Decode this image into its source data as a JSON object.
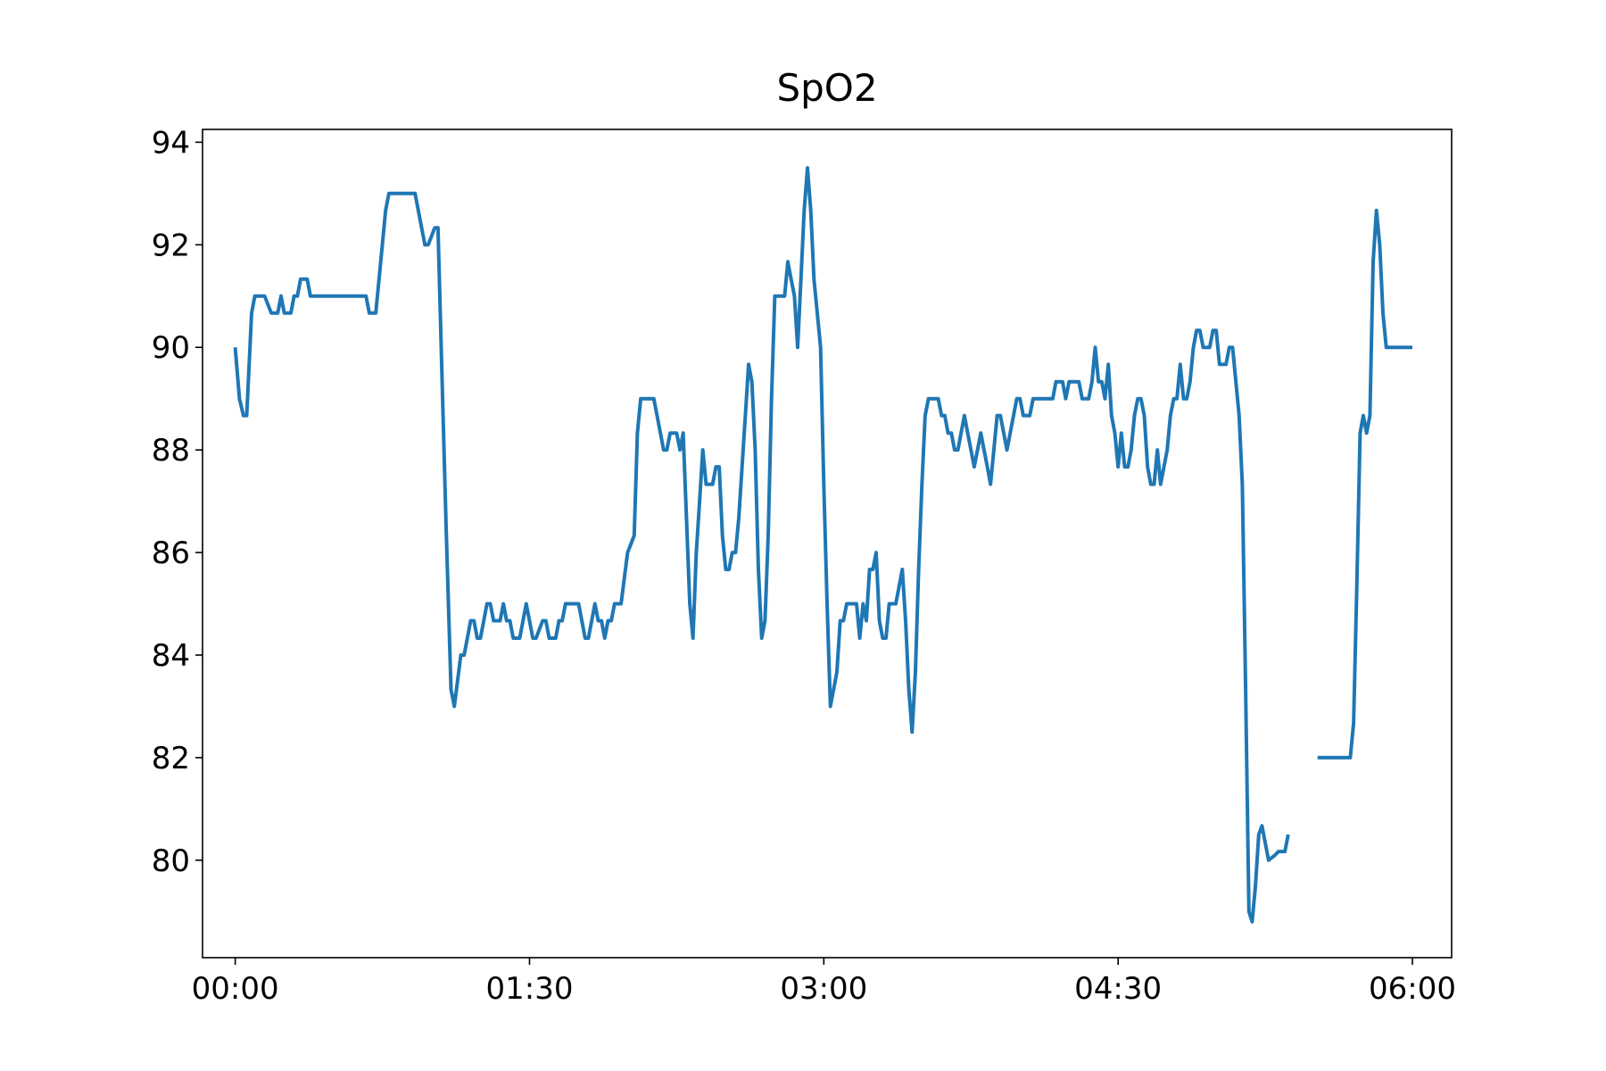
{
  "chart_data": {
    "type": "line",
    "title": "SpO2",
    "xlabel": "",
    "ylabel": "",
    "x_unit": "minutes",
    "xlim": [
      -10,
      372
    ],
    "ylim": [
      78.1,
      94.25
    ],
    "x_ticks": [
      {
        "value": 0,
        "label": "00:00"
      },
      {
        "value": 90,
        "label": "01:30"
      },
      {
        "value": 180,
        "label": "03:00"
      },
      {
        "value": 270,
        "label": "04:30"
      },
      {
        "value": 360,
        "label": "06:00"
      }
    ],
    "y_ticks": [
      80,
      82,
      84,
      86,
      88,
      90,
      92,
      94
    ],
    "grid": false,
    "color": "#1f77b4",
    "series": [
      {
        "segments": [
          [
            [
              0,
              90.0
            ],
            [
              1.3,
              89.0
            ],
            [
              2.5,
              88.67
            ],
            [
              3.5,
              88.67
            ],
            [
              5,
              90.67
            ],
            [
              6,
              91.0
            ],
            [
              9,
              91.0
            ],
            [
              11,
              90.67
            ],
            [
              13,
              90.67
            ],
            [
              14,
              91.0
            ],
            [
              15,
              90.67
            ],
            [
              17,
              90.67
            ],
            [
              18,
              91.0
            ],
            [
              19,
              91.0
            ],
            [
              20,
              91.33
            ],
            [
              22,
              91.33
            ],
            [
              23,
              91.0
            ],
            [
              40,
              91.0
            ],
            [
              41,
              90.67
            ],
            [
              43,
              90.67
            ],
            [
              46,
              92.67
            ],
            [
              47,
              93.0
            ],
            [
              55,
              93.0
            ],
            [
              58,
              92.0
            ],
            [
              59,
              92.0
            ],
            [
              61,
              92.33
            ],
            [
              62,
              92.33
            ],
            [
              63,
              90.0
            ],
            [
              64.5,
              86.5
            ],
            [
              66,
              83.33
            ],
            [
              67,
              83.0
            ],
            [
              69,
              84.0
            ],
            [
              70,
              84.0
            ],
            [
              72,
              84.67
            ],
            [
              73,
              84.67
            ],
            [
              74,
              84.33
            ],
            [
              75,
              84.33
            ],
            [
              77,
              85.0
            ],
            [
              78,
              85.0
            ],
            [
              79,
              84.67
            ],
            [
              81,
              84.67
            ],
            [
              82,
              85.0
            ],
            [
              83,
              84.67
            ],
            [
              84,
              84.67
            ],
            [
              85,
              84.33
            ],
            [
              87,
              84.33
            ],
            [
              89,
              85.0
            ],
            [
              91,
              84.33
            ],
            [
              92,
              84.33
            ],
            [
              94,
              84.67
            ],
            [
              95,
              84.67
            ],
            [
              96,
              84.33
            ],
            [
              98,
              84.33
            ],
            [
              99,
              84.67
            ],
            [
              100,
              84.67
            ],
            [
              101,
              85.0
            ],
            [
              105,
              85.0
            ],
            [
              107,
              84.33
            ],
            [
              108,
              84.33
            ],
            [
              110,
              85.0
            ],
            [
              111,
              84.67
            ],
            [
              112,
              84.67
            ],
            [
              113,
              84.33
            ],
            [
              114,
              84.67
            ],
            [
              115,
              84.67
            ],
            [
              116,
              85.0
            ],
            [
              118,
              85.0
            ],
            [
              120,
              86.0
            ],
            [
              122,
              86.33
            ],
            [
              123,
              88.33
            ],
            [
              124,
              89.0
            ],
            [
              128,
              89.0
            ],
            [
              131,
              88.0
            ],
            [
              132,
              88.0
            ],
            [
              133,
              88.33
            ],
            [
              135,
              88.33
            ],
            [
              136,
              88.0
            ],
            [
              137,
              88.33
            ],
            [
              138,
              86.67
            ],
            [
              139,
              85.0
            ],
            [
              140,
              84.33
            ],
            [
              141,
              86.0
            ],
            [
              142,
              87.0
            ],
            [
              143,
              88.0
            ],
            [
              144,
              87.33
            ],
            [
              146,
              87.33
            ],
            [
              147,
              87.67
            ],
            [
              148,
              87.67
            ],
            [
              149,
              86.33
            ],
            [
              150,
              85.67
            ],
            [
              151,
              85.67
            ],
            [
              152,
              86.0
            ],
            [
              153,
              86.0
            ],
            [
              154,
              86.67
            ],
            [
              155,
              87.67
            ],
            [
              156,
              88.67
            ],
            [
              157,
              89.67
            ],
            [
              158,
              89.33
            ],
            [
              159,
              88.0
            ],
            [
              160,
              85.67
            ],
            [
              161,
              84.33
            ],
            [
              162,
              84.67
            ],
            [
              163,
              86.33
            ],
            [
              164,
              89.0
            ],
            [
              165,
              91.0
            ],
            [
              168,
              91.0
            ],
            [
              169,
              91.67
            ],
            [
              170,
              91.33
            ],
            [
              171,
              91.0
            ],
            [
              172,
              90.0
            ],
            [
              173,
              91.33
            ],
            [
              174,
              92.67
            ],
            [
              175,
              93.5
            ],
            [
              176,
              92.67
            ],
            [
              177,
              91.33
            ],
            [
              178,
              90.67
            ],
            [
              179,
              90.0
            ],
            [
              180,
              87.33
            ],
            [
              181,
              85.0
            ],
            [
              182,
              83.0
            ],
            [
              183,
              83.33
            ],
            [
              184,
              83.67
            ],
            [
              185,
              84.67
            ],
            [
              186,
              84.67
            ],
            [
              187,
              85.0
            ],
            [
              190,
              85.0
            ],
            [
              191,
              84.33
            ],
            [
              192,
              85.0
            ],
            [
              193,
              84.67
            ],
            [
              194,
              85.67
            ],
            [
              195,
              85.67
            ],
            [
              196,
              86.0
            ],
            [
              197,
              84.67
            ],
            [
              198,
              84.33
            ],
            [
              199,
              84.33
            ],
            [
              200,
              85.0
            ],
            [
              202,
              85.0
            ],
            [
              203,
              85.33
            ],
            [
              204,
              85.67
            ],
            [
              205,
              84.67
            ],
            [
              206,
              83.33
            ],
            [
              207,
              82.5
            ],
            [
              208,
              83.67
            ],
            [
              209,
              85.67
            ],
            [
              210,
              87.33
            ],
            [
              211,
              88.67
            ],
            [
              212,
              89.0
            ],
            [
              215,
              89.0
            ],
            [
              216,
              88.67
            ],
            [
              217,
              88.67
            ],
            [
              218,
              88.33
            ],
            [
              219,
              88.33
            ],
            [
              220,
              88.0
            ],
            [
              221,
              88.0
            ],
            [
              223,
              88.67
            ],
            [
              224,
              88.33
            ],
            [
              226,
              87.67
            ],
            [
              228,
              88.33
            ],
            [
              229,
              88.0
            ],
            [
              230,
              87.67
            ],
            [
              231,
              87.33
            ],
            [
              233,
              88.67
            ],
            [
              234,
              88.67
            ],
            [
              236,
              88.0
            ],
            [
              237,
              88.33
            ],
            [
              239,
              89.0
            ],
            [
              240,
              89.0
            ],
            [
              241,
              88.67
            ],
            [
              243,
              88.67
            ],
            [
              244,
              89.0
            ],
            [
              250,
              89.0
            ],
            [
              251,
              89.33
            ],
            [
              253,
              89.33
            ],
            [
              254,
              89.0
            ],
            [
              255,
              89.33
            ],
            [
              258,
              89.33
            ],
            [
              259,
              89.0
            ],
            [
              261,
              89.0
            ],
            [
              262,
              89.33
            ],
            [
              263,
              90.0
            ],
            [
              264,
              89.33
            ],
            [
              265,
              89.33
            ],
            [
              266,
              89.0
            ],
            [
              267,
              89.67
            ],
            [
              268,
              88.67
            ],
            [
              269,
              88.33
            ],
            [
              270,
              87.67
            ],
            [
              271,
              88.33
            ],
            [
              272,
              87.67
            ],
            [
              273,
              87.67
            ],
            [
              274,
              88.0
            ],
            [
              275,
              88.67
            ],
            [
              276,
              89.0
            ],
            [
              277,
              89.0
            ],
            [
              278,
              88.67
            ],
            [
              279,
              87.67
            ],
            [
              280,
              87.33
            ],
            [
              281,
              87.33
            ],
            [
              282,
              88.0
            ],
            [
              283,
              87.33
            ],
            [
              285,
              88.0
            ],
            [
              286,
              88.67
            ],
            [
              287,
              89.0
            ],
            [
              288,
              89.0
            ],
            [
              289,
              89.67
            ],
            [
              290,
              89.0
            ],
            [
              291,
              89.0
            ],
            [
              292,
              89.33
            ],
            [
              293,
              90.0
            ],
            [
              294,
              90.33
            ],
            [
              295,
              90.33
            ],
            [
              296,
              90.0
            ],
            [
              298,
              90.0
            ],
            [
              299,
              90.33
            ],
            [
              300,
              90.33
            ],
            [
              301,
              89.67
            ],
            [
              303,
              89.67
            ],
            [
              304,
              90.0
            ],
            [
              305,
              90.0
            ],
            [
              307,
              88.67
            ],
            [
              308,
              87.33
            ],
            [
              309,
              83.33
            ],
            [
              310,
              79.0
            ],
            [
              311,
              78.8
            ],
            [
              312,
              79.5
            ],
            [
              313,
              80.5
            ],
            [
              314,
              80.67
            ],
            [
              316,
              80.0
            ],
            [
              318,
              80.1
            ],
            [
              319,
              80.17
            ],
            [
              321,
              80.17
            ],
            [
              322,
              80.5
            ]
          ],
          [
            [
              331,
              82.0
            ],
            [
              341,
              82.0
            ],
            [
              342,
              82.67
            ],
            [
              343,
              85.33
            ],
            [
              344,
              88.33
            ],
            [
              345,
              88.67
            ],
            [
              346,
              88.33
            ],
            [
              347,
              88.67
            ],
            [
              348,
              91.67
            ],
            [
              349,
              92.67
            ],
            [
              350,
              92.0
            ],
            [
              351,
              90.67
            ],
            [
              352,
              90.0
            ],
            [
              360,
              90.0
            ]
          ]
        ]
      }
    ]
  }
}
